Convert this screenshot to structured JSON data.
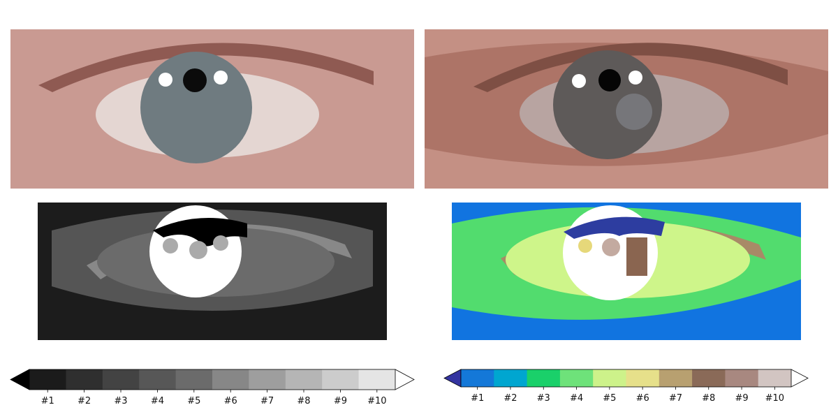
{
  "chart_data": [
    {
      "type": "heatmap",
      "panel": "top-left",
      "content": "original photograph of an eye (blue-gray iris, two specular highlights)",
      "colors": {
        "skin": "#c99a92",
        "skin_dark": "#8f5a52",
        "sclera": "#e4d6d2",
        "iris": "#6f7b80",
        "pupil": "#0b0b0b",
        "highlight": "#ffffff"
      }
    },
    {
      "type": "heatmap",
      "panel": "top-right",
      "content": "color-quantized version of the eye photograph",
      "colors": {
        "skin": "#c49084",
        "skin_mid": "#ad7467",
        "skin_dark": "#7e4f44",
        "sclera": "#b8a4a1",
        "iris": "#5e5a59",
        "iris_light": "#76767a",
        "pupil": "#050505",
        "highlight": "#ffffff"
      }
    },
    {
      "type": "heatmap",
      "panel": "bottom-left",
      "content": "10-level cluster label map in grayscale",
      "colors": {
        "background": "#1c1c1c",
        "level2": "#2f2f2f",
        "level4": "#555555",
        "level6": "#888888",
        "sclera": "#6b6b6b",
        "iris": "#ffffff",
        "dark_cluster": "#000000",
        "spot": "#aaaaaa"
      }
    },
    {
      "type": "heatmap",
      "panel": "bottom-right",
      "content": "10-level cluster label map in terrain colormap",
      "colors": {
        "background": "#1174e0",
        "skin": "#52dc6e",
        "sclera": "#cef58a",
        "iris": "#ffffff",
        "iris_dark": "#2d3da0",
        "lid": "#a88a67",
        "spot_yellow": "#e6d87a",
        "spot_pink": "#c3aaa0",
        "spot_brown": "#8a6550"
      }
    }
  ],
  "colorbars": [
    {
      "name": "gray",
      "labels": [
        "#1",
        "#2",
        "#3",
        "#4",
        "#5",
        "#6",
        "#7",
        "#8",
        "#9",
        "#10"
      ],
      "colors": [
        "#1b1b1b",
        "#2f2f2f",
        "#434343",
        "#575757",
        "#6b6b6b",
        "#878787",
        "#9e9e9e",
        "#b5b5b5",
        "#cccccc",
        "#e5e5e5"
      ],
      "under_color": "#000000",
      "over_color": "#ffffff"
    },
    {
      "name": "terrain",
      "labels": [
        "#1",
        "#2",
        "#3",
        "#4",
        "#5",
        "#6",
        "#7",
        "#8",
        "#9",
        "#10"
      ],
      "colors": [
        "#1478d8",
        "#00a6d0",
        "#1ad06a",
        "#6ee27a",
        "#cdf28a",
        "#e6e08a",
        "#b8a070",
        "#8a6a58",
        "#a88880",
        "#d2c5c2"
      ],
      "under_color": "#3434a0",
      "over_color": "#ffffff"
    }
  ]
}
